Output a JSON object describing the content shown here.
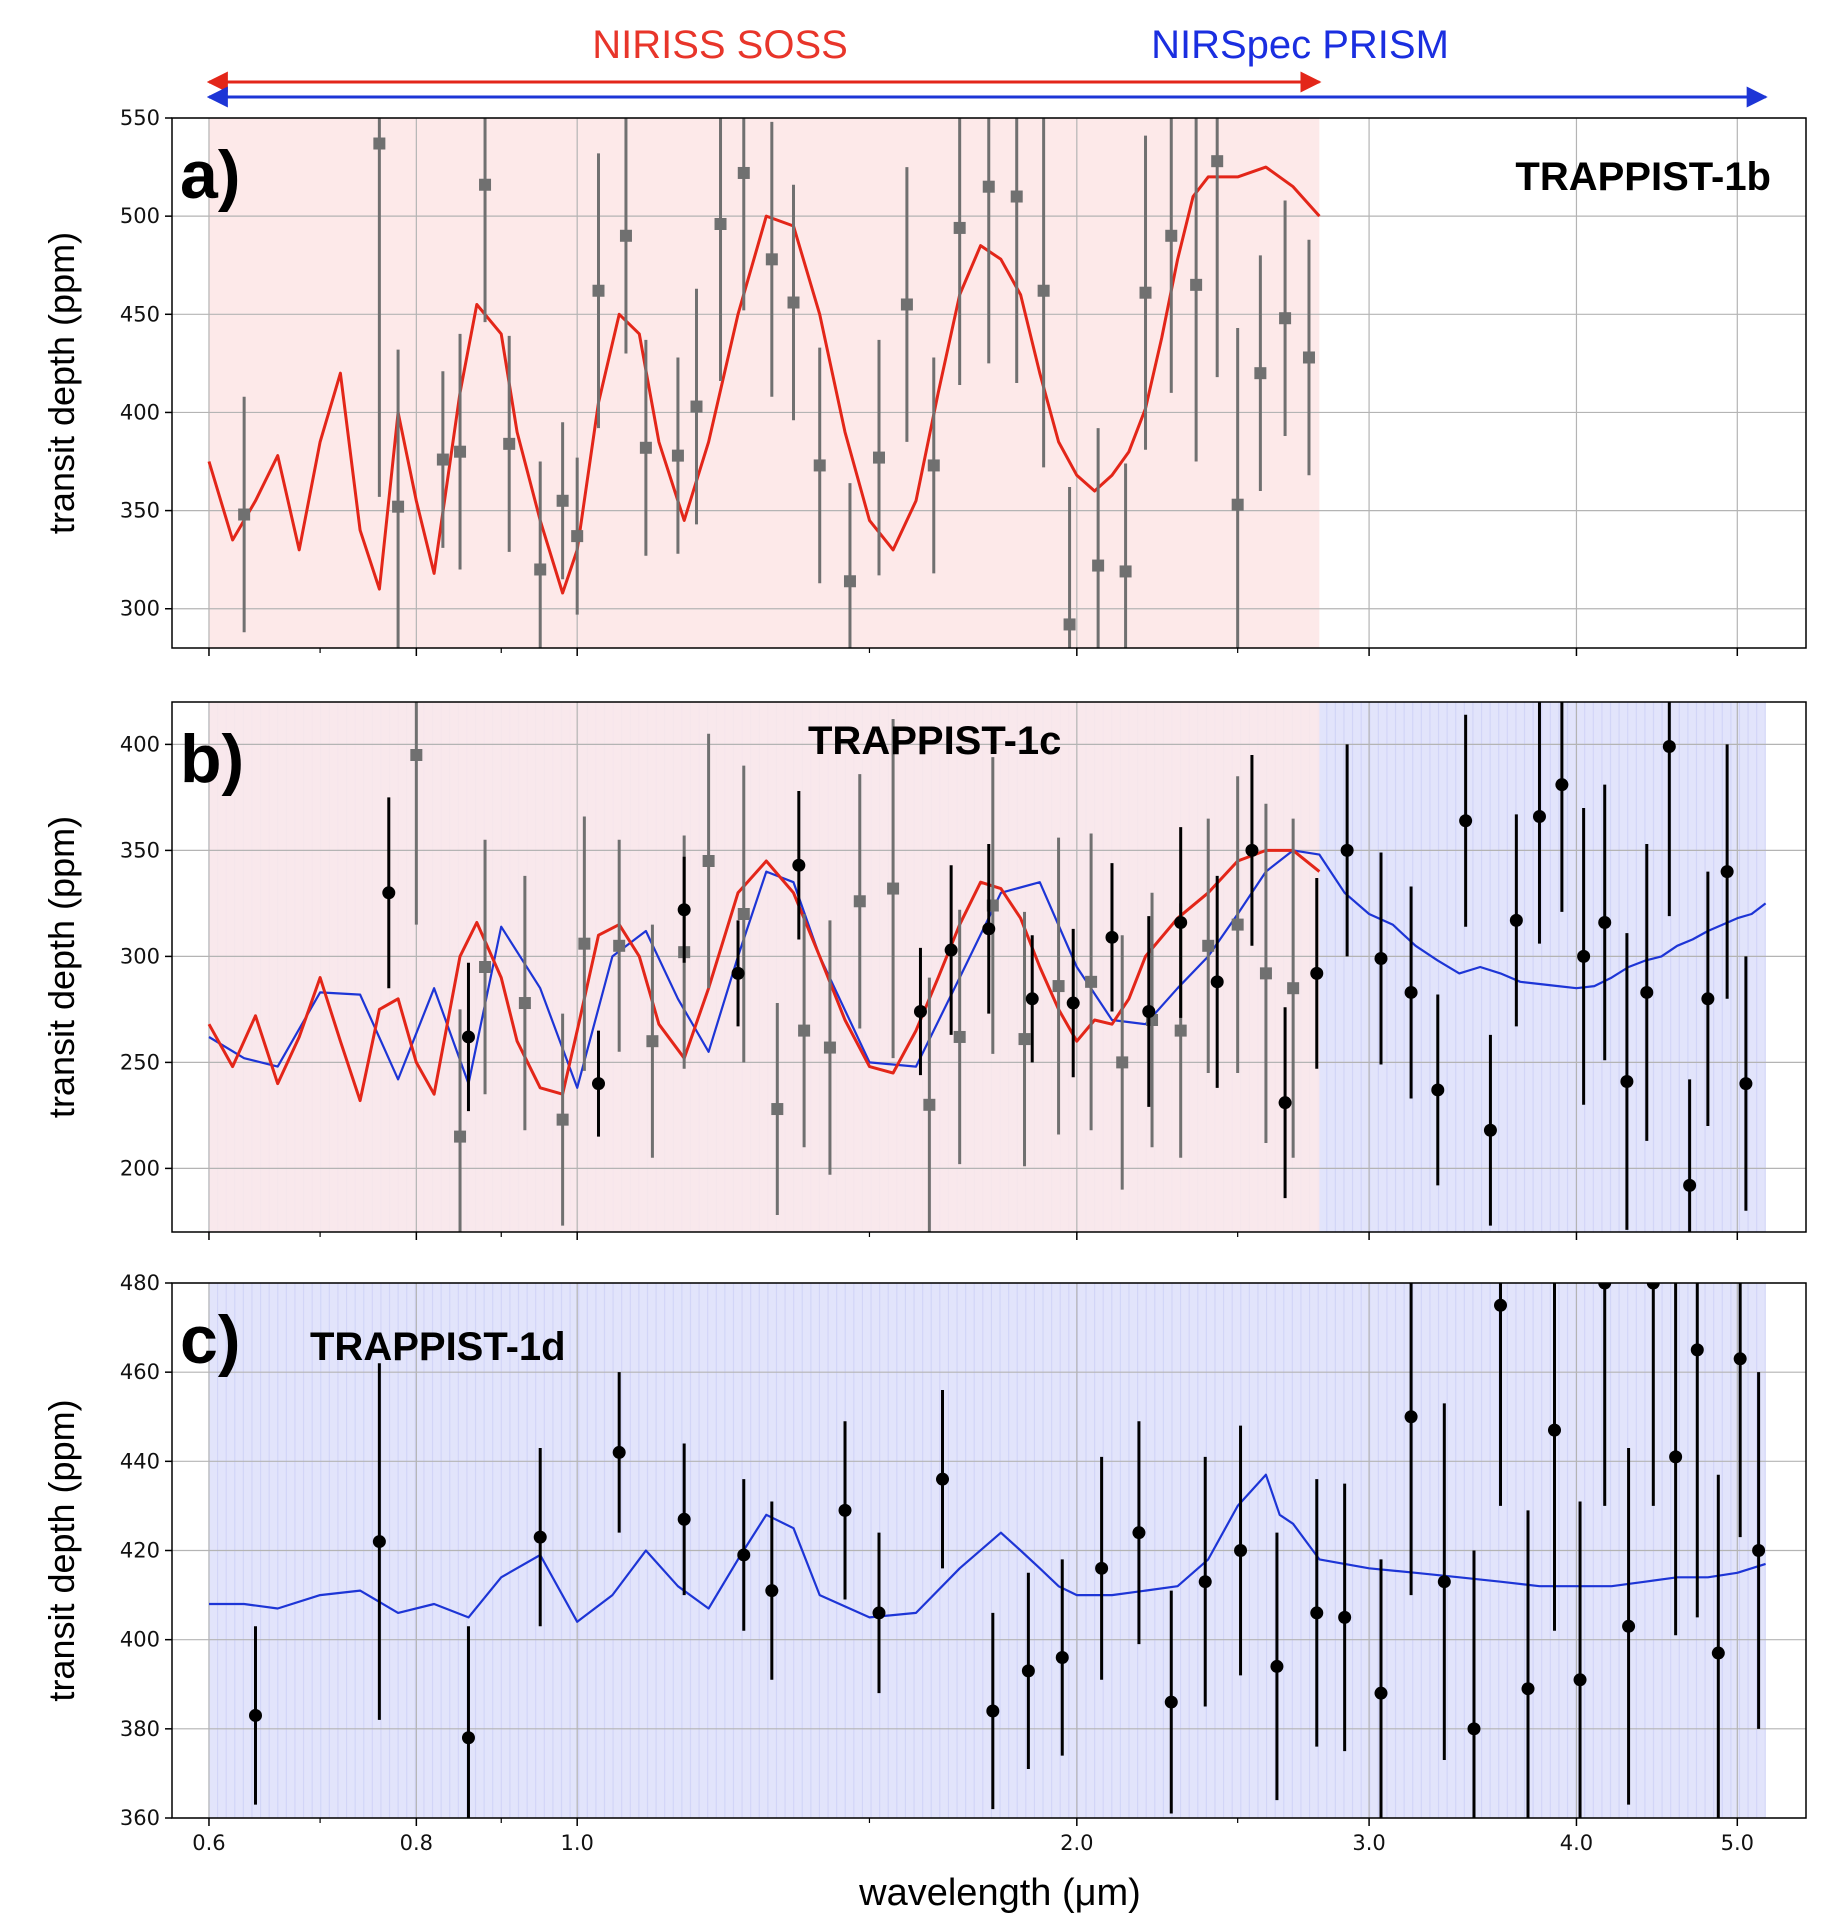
{
  "figure": {
    "instruments": [
      {
        "label": "NIRISS SOSS",
        "color": "#e8352a",
        "range": [
          0.6,
          2.8
        ]
      },
      {
        "label": "NIRSpec PRISM",
        "color": "#1a2ee0",
        "range": [
          0.6,
          5.2
        ]
      }
    ],
    "colors": {
      "soss_model": "#e32619",
      "prism_model": "#1d35d6",
      "soss_band": "#fde9e9",
      "prism_band": "#e2e4fb",
      "soss_points": "#707070",
      "prism_points": "#000000"
    },
    "xlabel": "wavelength (μm)"
  },
  "chart_data": [
    {
      "type": "line",
      "panel": "a)",
      "title": "TRAPPIST-1b",
      "ylabel": "transit depth (ppm)",
      "xscale": "log",
      "xlim": [
        0.57,
        5.5
      ],
      "ylim": [
        280,
        550
      ],
      "x_ticks": [
        0.6,
        0.8,
        1.0,
        2.0,
        3.0,
        4.0,
        5.0
      ],
      "x_tick_labels": [],
      "y_ticks": [
        300,
        350,
        400,
        450,
        500,
        550
      ],
      "y_tick_labels": [
        "300",
        "350",
        "400",
        "450",
        "500",
        "550"
      ],
      "band_range": [
        0.6,
        2.8
      ],
      "series": [
        {
          "name": "NIRISS SOSS model",
          "color": "#e32619",
          "x": [
            0.6,
            0.62,
            0.64,
            0.66,
            0.68,
            0.7,
            0.72,
            0.74,
            0.76,
            0.78,
            0.8,
            0.82,
            0.85,
            0.87,
            0.9,
            0.92,
            0.95,
            0.98,
            1.0,
            1.03,
            1.06,
            1.09,
            1.12,
            1.16,
            1.2,
            1.25,
            1.3,
            1.35,
            1.4,
            1.45,
            1.5,
            1.55,
            1.6,
            1.65,
            1.7,
            1.75,
            1.8,
            1.85,
            1.9,
            1.95,
            2.0,
            2.05,
            2.1,
            2.15,
            2.2,
            2.25,
            2.3,
            2.35,
            2.4,
            2.5,
            2.6,
            2.7,
            2.8
          ],
          "y": [
            375,
            335,
            355,
            378,
            330,
            385,
            420,
            340,
            310,
            400,
            355,
            318,
            410,
            455,
            440,
            390,
            345,
            308,
            330,
            405,
            450,
            440,
            385,
            345,
            385,
            450,
            500,
            495,
            450,
            390,
            345,
            330,
            355,
            410,
            460,
            485,
            478,
            460,
            420,
            385,
            368,
            360,
            368,
            380,
            402,
            438,
            478,
            510,
            520,
            520,
            525,
            515,
            500
          ]
        }
      ],
      "points": [
        {
          "name": "NIRISS SOSS data",
          "color": "#707070",
          "marker": "square",
          "x": [
            0.63,
            0.76,
            0.78,
            0.83,
            0.85,
            0.88,
            0.91,
            0.95,
            0.98,
            1.0,
            1.03,
            1.07,
            1.1,
            1.15,
            1.18,
            1.22,
            1.26,
            1.31,
            1.35,
            1.4,
            1.46,
            1.52,
            1.58,
            1.64,
            1.7,
            1.77,
            1.84,
            1.91,
            1.98,
            2.06,
            2.14,
            2.2,
            2.28,
            2.36,
            2.43,
            2.5,
            2.58,
            2.67,
            2.76
          ],
          "y": [
            348,
            537,
            352,
            376,
            380,
            516,
            384,
            320,
            355,
            337,
            462,
            490,
            382,
            378,
            403,
            496,
            522,
            478,
            456,
            373,
            314,
            377,
            455,
            373,
            494,
            515,
            510,
            462,
            292,
            322,
            319,
            461,
            490,
            465,
            528,
            353,
            420,
            448,
            428
          ],
          "err": [
            60,
            180,
            80,
            45,
            60,
            70,
            55,
            55,
            40,
            40,
            70,
            60,
            55,
            50,
            60,
            80,
            70,
            70,
            60,
            60,
            50,
            60,
            70,
            55,
            80,
            90,
            95,
            90,
            70,
            70,
            55,
            80,
            80,
            90,
            110,
            90,
            60,
            60,
            60
          ]
        }
      ]
    },
    {
      "type": "line",
      "panel": "b)",
      "title": "TRAPPIST-1c",
      "ylabel": "transit depth (ppm)",
      "xscale": "log",
      "xlim": [
        0.57,
        5.5
      ],
      "ylim": [
        170,
        420
      ],
      "x_ticks": [
        0.6,
        0.8,
        1.0,
        2.0,
        3.0,
        4.0,
        5.0
      ],
      "x_tick_labels": [],
      "y_ticks": [
        200,
        250,
        300,
        350,
        400
      ],
      "y_tick_labels": [
        "200",
        "250",
        "300",
        "350",
        "400"
      ],
      "band_range": [
        0.6,
        2.8
      ],
      "prism_band_range": [
        0.6,
        5.2
      ],
      "series": [
        {
          "name": "NIRISS SOSS model",
          "color": "#e32619",
          "x": [
            0.6,
            0.62,
            0.64,
            0.66,
            0.68,
            0.7,
            0.72,
            0.74,
            0.76,
            0.78,
            0.8,
            0.82,
            0.85,
            0.87,
            0.9,
            0.92,
            0.95,
            0.98,
            1.0,
            1.03,
            1.06,
            1.09,
            1.12,
            1.16,
            1.2,
            1.25,
            1.3,
            1.35,
            1.4,
            1.45,
            1.5,
            1.55,
            1.6,
            1.65,
            1.7,
            1.75,
            1.8,
            1.85,
            1.9,
            1.95,
            2.0,
            2.05,
            2.1,
            2.15,
            2.2,
            2.3,
            2.4,
            2.5,
            2.6,
            2.7,
            2.8
          ],
          "y": [
            268,
            248,
            272,
            240,
            262,
            290,
            260,
            232,
            275,
            280,
            250,
            235,
            300,
            316,
            290,
            260,
            238,
            235,
            265,
            310,
            315,
            300,
            268,
            252,
            285,
            330,
            345,
            330,
            300,
            270,
            248,
            245,
            265,
            290,
            315,
            335,
            332,
            318,
            295,
            275,
            260,
            270,
            268,
            280,
            300,
            318,
            330,
            345,
            350,
            350,
            340
          ]
        },
        {
          "name": "NIRSpec PRISM model",
          "color": "#1d35d6",
          "x": [
            0.6,
            0.63,
            0.66,
            0.7,
            0.74,
            0.78,
            0.82,
            0.86,
            0.9,
            0.95,
            1.0,
            1.05,
            1.1,
            1.15,
            1.2,
            1.25,
            1.3,
            1.35,
            1.4,
            1.5,
            1.6,
            1.7,
            1.8,
            1.9,
            2.0,
            2.1,
            2.2,
            2.3,
            2.4,
            2.5,
            2.6,
            2.7,
            2.8,
            2.9,
            3.0,
            3.1,
            3.2,
            3.3,
            3.4,
            3.5,
            3.6,
            3.7,
            3.8,
            3.9,
            4.0,
            4.1,
            4.2,
            4.3,
            4.4,
            4.5,
            4.6,
            4.7,
            4.8,
            4.9,
            5.0,
            5.1,
            5.2
          ],
          "y": [
            262,
            252,
            248,
            283,
            282,
            242,
            285,
            240,
            314,
            285,
            238,
            300,
            312,
            280,
            255,
            300,
            340,
            335,
            300,
            250,
            248,
            290,
            330,
            335,
            295,
            270,
            268,
            285,
            300,
            320,
            340,
            350,
            348,
            330,
            320,
            315,
            305,
            298,
            292,
            295,
            292,
            288,
            287,
            286,
            285,
            286,
            290,
            295,
            298,
            300,
            305,
            308,
            312,
            315,
            318,
            320,
            325
          ]
        }
      ],
      "points": [
        {
          "name": "NIRISS SOSS data",
          "color": "#707070",
          "marker": "square",
          "x": [
            0.8,
            0.85,
            0.88,
            0.93,
            0.98,
            1.01,
            1.06,
            1.11,
            1.16,
            1.2,
            1.26,
            1.32,
            1.37,
            1.42,
            1.48,
            1.55,
            1.63,
            1.7,
            1.78,
            1.86,
            1.95,
            2.04,
            2.13,
            2.22,
            2.31,
            2.4,
            2.5,
            2.6,
            2.7
          ],
          "y": [
            395,
            215,
            295,
            278,
            223,
            306,
            305,
            260,
            302,
            345,
            320,
            228,
            265,
            257,
            326,
            332,
            230,
            262,
            324,
            261,
            286,
            288,
            250,
            270,
            265,
            305,
            315,
            292,
            285
          ],
          "err": [
            80,
            60,
            60,
            60,
            50,
            60,
            50,
            55,
            55,
            60,
            70,
            50,
            55,
            60,
            60,
            80,
            60,
            60,
            70,
            60,
            70,
            70,
            60,
            60,
            60,
            60,
            70,
            80,
            80
          ]
        },
        {
          "name": "NIRSpec PRISM data",
          "color": "#000000",
          "marker": "circle",
          "x": [
            0.77,
            0.86,
            1.03,
            1.16,
            1.25,
            1.36,
            1.61,
            1.68,
            1.77,
            1.88,
            1.99,
            2.1,
            2.21,
            2.31,
            2.43,
            2.55,
            2.67,
            2.79,
            2.91,
            3.05,
            3.18,
            3.3,
            3.43,
            3.55,
            3.68,
            3.8,
            3.92,
            4.04,
            4.16,
            4.29,
            4.41,
            4.55,
            4.68,
            4.8,
            4.93,
            5.06
          ],
          "y": [
            330,
            262,
            240,
            322,
            292,
            343,
            274,
            303,
            313,
            280,
            278,
            309,
            274,
            316,
            288,
            350,
            231,
            292,
            350,
            299,
            283,
            237,
            364,
            218,
            317,
            366,
            381,
            300,
            316,
            241,
            283,
            399,
            192,
            280,
            340,
            240
          ],
          "err": [
            45,
            35,
            25,
            25,
            25,
            35,
            30,
            40,
            40,
            30,
            35,
            35,
            45,
            45,
            50,
            45,
            45,
            45,
            50,
            50,
            50,
            45,
            50,
            45,
            50,
            60,
            60,
            70,
            65,
            70,
            70,
            80,
            50,
            60,
            60,
            60
          ]
        }
      ]
    },
    {
      "type": "line",
      "panel": "c)",
      "title": "TRAPPIST-1d",
      "ylabel": "transit depth (ppm)",
      "xscale": "log",
      "xlim": [
        0.57,
        5.5
      ],
      "ylim": [
        360,
        480
      ],
      "x_ticks": [
        0.6,
        0.8,
        1.0,
        2.0,
        3.0,
        4.0,
        5.0
      ],
      "x_tick_labels": [
        "0.6",
        "0.8",
        "1.0",
        "2.0",
        "3.0",
        "4.0",
        "5.0"
      ],
      "y_ticks": [
        360,
        380,
        400,
        420,
        440,
        460,
        480
      ],
      "y_tick_labels": [
        "360",
        "380",
        "400",
        "420",
        "440",
        "460",
        "480"
      ],
      "prism_band_range": [
        0.6,
        5.2
      ],
      "series": [
        {
          "name": "NIRSpec PRISM model",
          "color": "#1d35d6",
          "x": [
            0.6,
            0.63,
            0.66,
            0.7,
            0.74,
            0.78,
            0.82,
            0.86,
            0.9,
            0.95,
            1.0,
            1.05,
            1.1,
            1.15,
            1.2,
            1.25,
            1.3,
            1.35,
            1.4,
            1.5,
            1.6,
            1.7,
            1.8,
            1.85,
            1.9,
            1.95,
            2.0,
            2.1,
            2.2,
            2.3,
            2.4,
            2.5,
            2.6,
            2.65,
            2.7,
            2.8,
            2.9,
            3.0,
            3.2,
            3.4,
            3.6,
            3.8,
            4.0,
            4.2,
            4.4,
            4.6,
            4.8,
            5.0,
            5.2
          ],
          "y": [
            408,
            408,
            407,
            410,
            411,
            406,
            408,
            405,
            414,
            419,
            404,
            410,
            420,
            412,
            407,
            418,
            428,
            425,
            410,
            405,
            406,
            416,
            424,
            420,
            416,
            412,
            410,
            410,
            411,
            412,
            418,
            430,
            437,
            428,
            426,
            418,
            417,
            416,
            415,
            414,
            413,
            412,
            412,
            412,
            413,
            414,
            414,
            415,
            417
          ]
        }
      ],
      "points": [
        {
          "name": "NIRSpec PRISM data",
          "color": "#000000",
          "marker": "circle",
          "x": [
            0.64,
            0.76,
            0.86,
            0.95,
            1.06,
            1.16,
            1.26,
            1.31,
            1.45,
            1.52,
            1.66,
            1.78,
            1.87,
            1.96,
            2.07,
            2.18,
            2.28,
            2.39,
            2.51,
            2.64,
            2.79,
            2.9,
            3.05,
            3.18,
            3.33,
            3.47,
            3.6,
            3.74,
            3.88,
            4.02,
            4.16,
            4.3,
            4.45,
            4.59,
            4.73,
            4.87,
            5.02,
            5.15
          ],
          "y": [
            383,
            422,
            378,
            423,
            442,
            427,
            419,
            411,
            429,
            406,
            436,
            384,
            393,
            396,
            416,
            424,
            386,
            413,
            420,
            394,
            406,
            405,
            388,
            450,
            413,
            380,
            475,
            389,
            447,
            391,
            480,
            403,
            480,
            441,
            465,
            397,
            463,
            420
          ],
          "err": [
            20,
            40,
            25,
            20,
            18,
            17,
            17,
            20,
            20,
            18,
            20,
            22,
            22,
            22,
            25,
            25,
            25,
            28,
            28,
            30,
            30,
            30,
            30,
            40,
            40,
            40,
            45,
            40,
            45,
            40,
            50,
            40,
            50,
            40,
            60,
            40,
            40,
            40
          ]
        }
      ]
    }
  ]
}
